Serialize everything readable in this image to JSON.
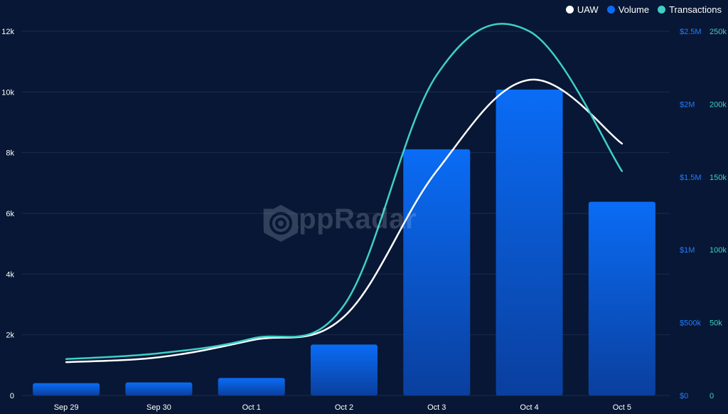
{
  "chart_data": {
    "type": "bar",
    "categories": [
      "Sep 29",
      "Sep 30",
      "Oct 1",
      "Oct 2",
      "Oct 3",
      "Oct 4",
      "Oct 5"
    ],
    "series": [
      {
        "name": "UAW",
        "type": "line",
        "axis": "left",
        "color": "#ffffff",
        "values": [
          1100,
          1260,
          1820,
          2600,
          7400,
          10400,
          8300
        ]
      },
      {
        "name": "Volume",
        "type": "bar",
        "axis": "right1",
        "color": "#0a6cf5",
        "values": [
          85000,
          90000,
          120000,
          350000,
          1690000,
          2100000,
          1330000
        ]
      },
      {
        "name": "Transactions",
        "type": "line",
        "axis": "right2",
        "color": "#3ecfc6",
        "values": [
          25000,
          29000,
          39000,
          62000,
          220000,
          250000,
          154000
        ]
      }
    ],
    "yaxis_left": {
      "ticks": [
        "0",
        "2k",
        "4k",
        "6k",
        "8k",
        "10k",
        "12k"
      ],
      "range": [
        0,
        12000
      ]
    },
    "yaxis_right1": {
      "ticks": [
        "$0",
        "$500k",
        "$1M",
        "$1.5M",
        "$2M",
        "$2.5M"
      ],
      "range": [
        0,
        2500000
      ],
      "color": "#1f7dff"
    },
    "yaxis_right2": {
      "ticks": [
        "0",
        "50k",
        "100k",
        "150k",
        "200k",
        "250k"
      ],
      "range": [
        0,
        250000
      ],
      "color": "#3ecfc6"
    },
    "grid": true,
    "legend_position": "top-right"
  },
  "watermark": {
    "text": "DappRadar",
    "icon": "dappradar-logo-icon"
  },
  "colors": {
    "background": "#081735",
    "grid": "#1b2b4d",
    "axis_text": "#ffffff"
  }
}
